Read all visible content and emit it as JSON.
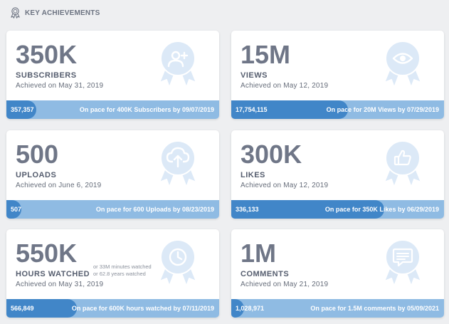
{
  "header": {
    "title": "KEY ACHIEVEMENTS",
    "icon": "award-ribbon-icon"
  },
  "colors": {
    "background": "#eeeff1",
    "card": "#ffffff",
    "bar_track": "#8fbbe3",
    "bar_fill": "#4186c8",
    "badge": "#dce9f7"
  },
  "cards": [
    {
      "value": "350K",
      "label": "SUBSCRIBERS",
      "achieved": "Achieved on May 31, 2019",
      "current": "357,357",
      "pace": "On pace for 400K Subscribers by 09/07/2019",
      "progress": 0.14,
      "icon": "add-user-icon"
    },
    {
      "value": "15M",
      "label": "VIEWS",
      "achieved": "Achieved on May 12, 2019",
      "current": "17,754,115",
      "pace": "On pace for 20M Views by 07/29/2019",
      "progress": 0.55,
      "icon": "eye-icon"
    },
    {
      "value": "500",
      "label": "UPLOADS",
      "achieved": "Achieved on June 6, 2019",
      "current": "507",
      "pace": "On pace for 600 Uploads by 08/23/2019",
      "progress": 0.07,
      "icon": "cloud-upload-icon"
    },
    {
      "value": "300K",
      "label": "LIKES",
      "achieved": "Achieved on May 12, 2019",
      "current": "336,133",
      "pace": "On pace for 350K Likes by 06/29/2019",
      "progress": 0.72,
      "icon": "thumbs-up-icon"
    },
    {
      "value": "550K",
      "label": "HOURS WATCHED",
      "achieved": "Achieved on May 31, 2019",
      "note1": "or 33M minutes watched",
      "note2": "or 62.8 years watched",
      "current": "566,849",
      "pace": "On pace for 600K hours watched by 07/11/2019",
      "progress": 0.33,
      "icon": "clock-icon"
    },
    {
      "value": "1M",
      "label": "COMMENTS",
      "achieved": "Achieved on May 21, 2019",
      "current": "1,028,971",
      "pace": "On pace for 1.5M comments by 05/09/2021",
      "progress": 0.06,
      "icon": "comment-icon"
    }
  ]
}
